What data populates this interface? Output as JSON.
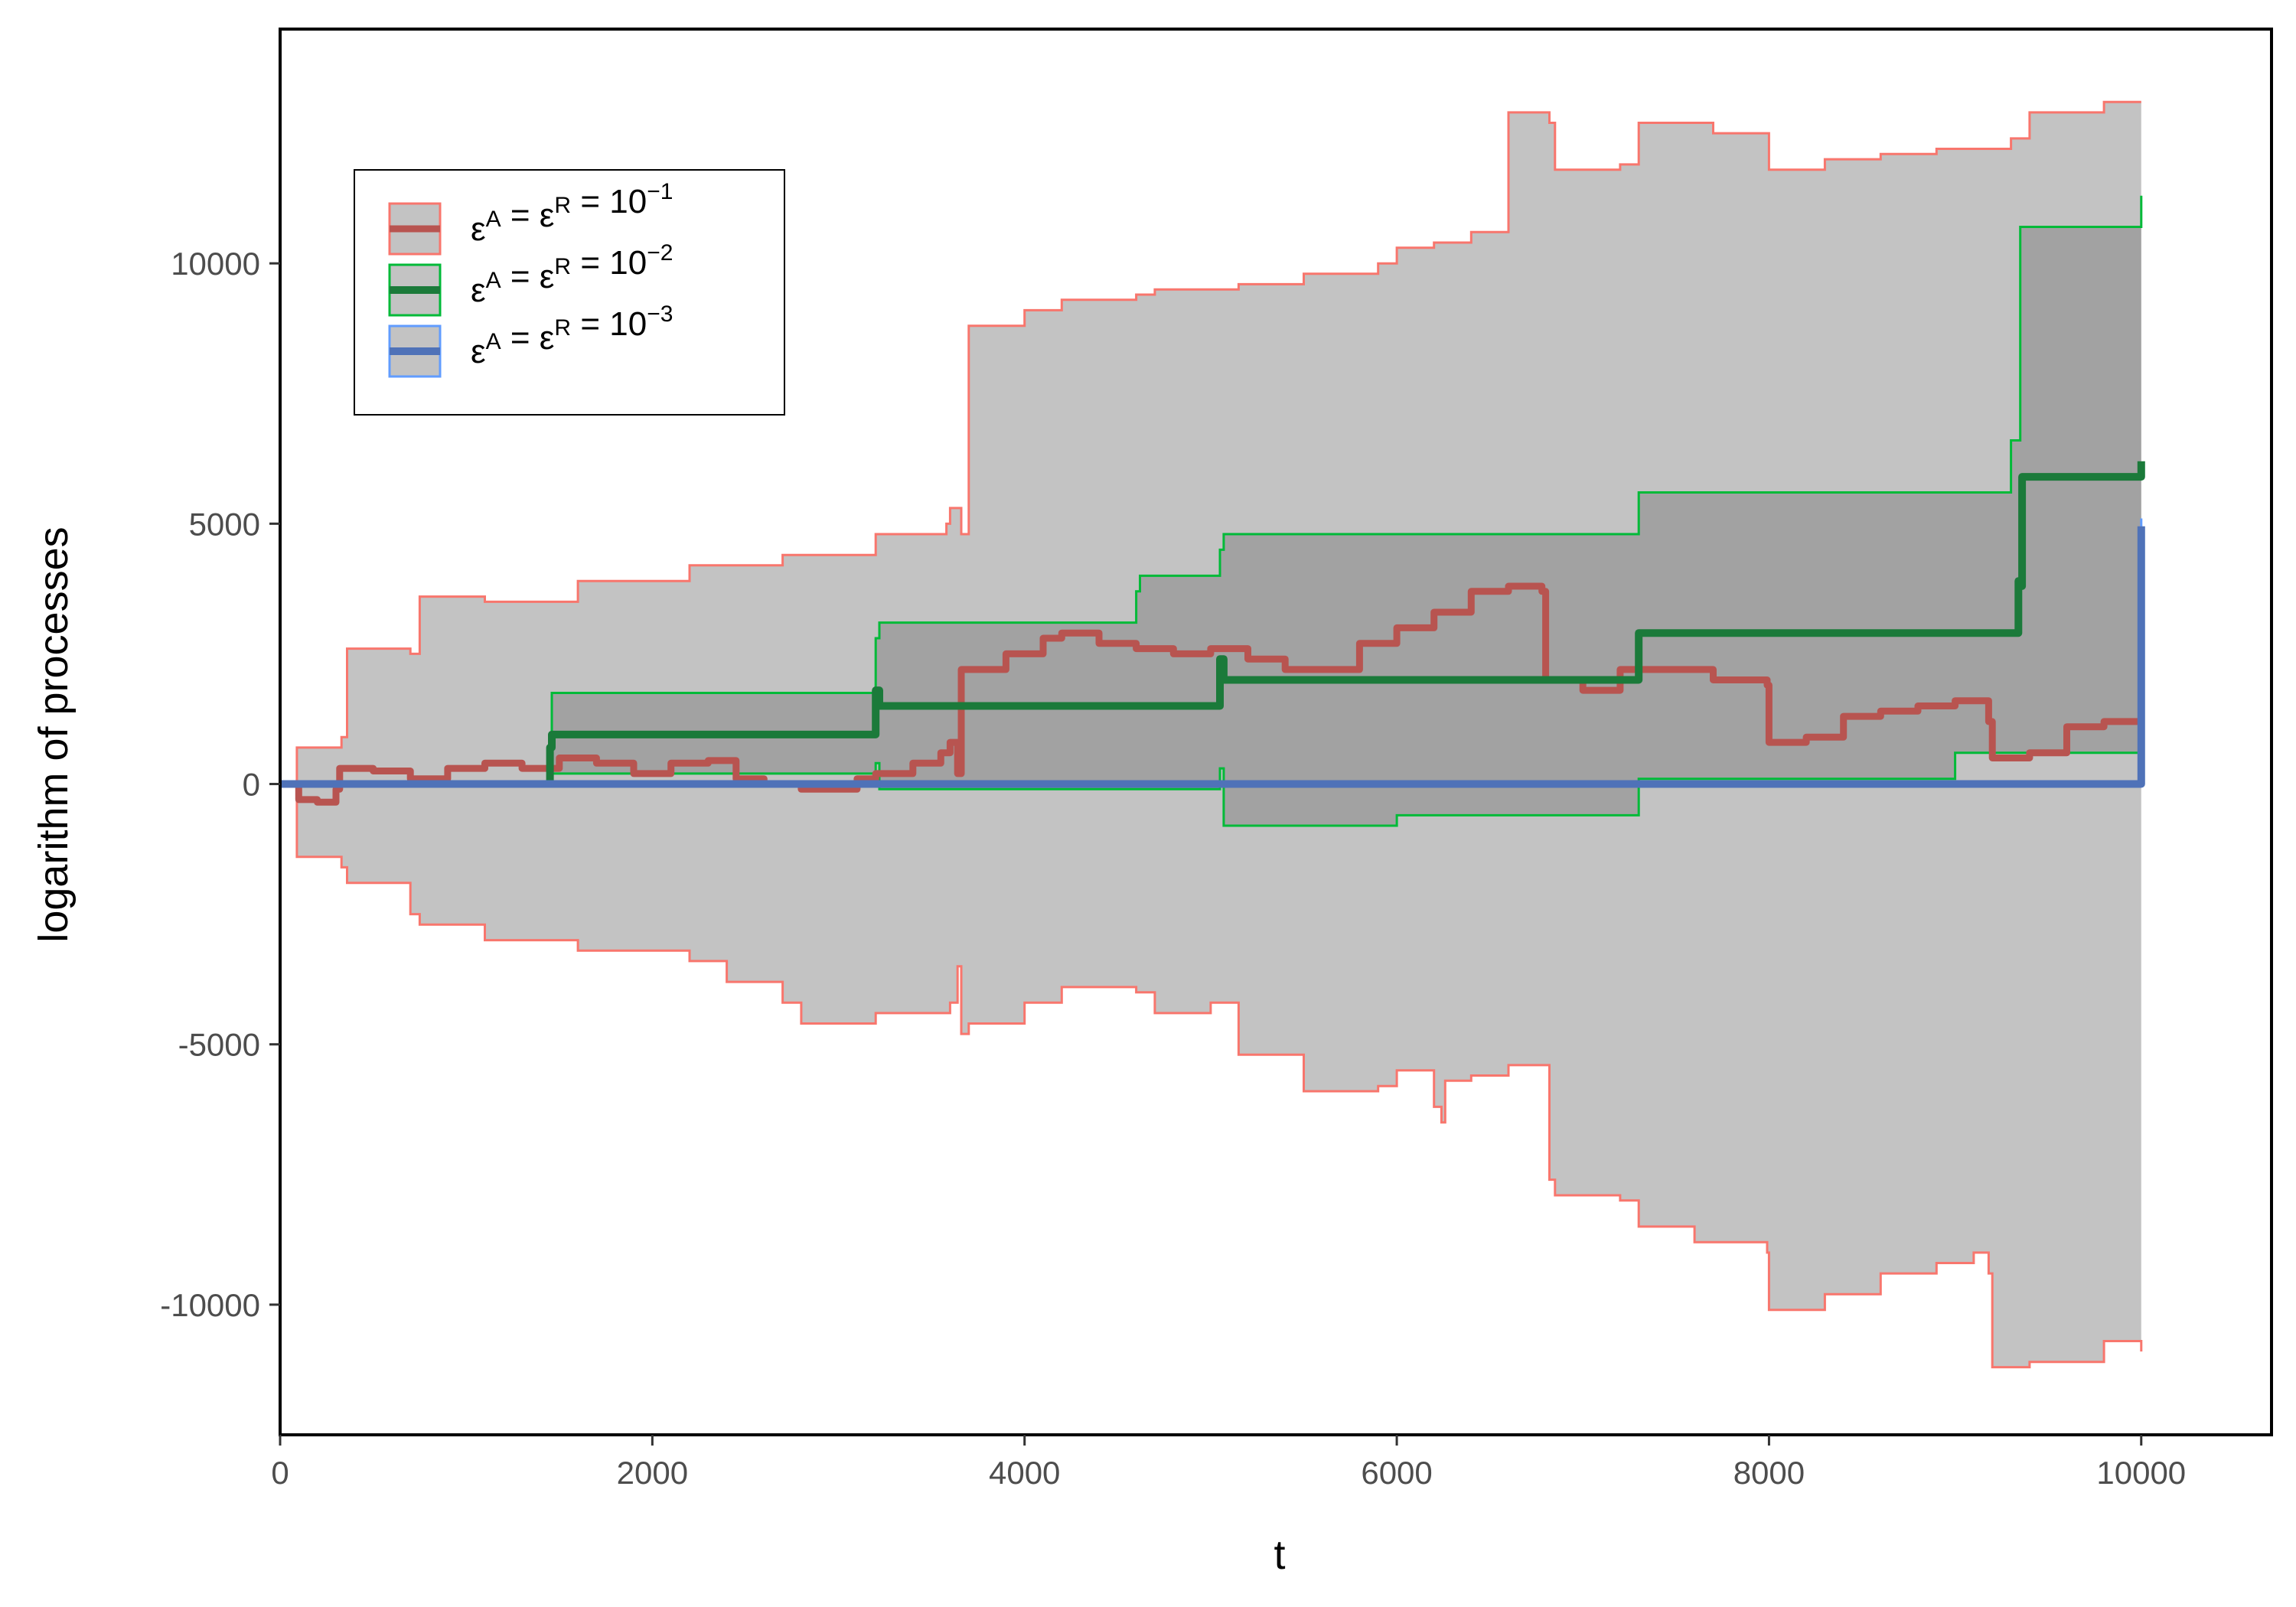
{
  "chart_data": {
    "type": "line",
    "xlabel": "t",
    "ylabel": "logarithm of processes",
    "xlim": [
      0,
      10700
    ],
    "ylim": [
      -12500,
      14500
    ],
    "x_ticks": [
      0,
      2000,
      4000,
      6000,
      8000,
      10000
    ],
    "y_ticks": [
      -10000,
      -5000,
      0,
      5000,
      10000
    ],
    "grid": false,
    "legend_position": "top-left",
    "legend": [
      {
        "eps": "ε",
        "a": "A",
        "eq1": " = ",
        "r": "R",
        "eq2": " = 10",
        "exp": "−1"
      },
      {
        "eps": "ε",
        "a": "A",
        "eq1": " = ",
        "r": "R",
        "eq2": " = 10",
        "exp": "−2"
      },
      {
        "eps": "ε",
        "a": "A",
        "eq1": " = ",
        "r": "R",
        "eq2": " = 10",
        "exp": "−3"
      }
    ],
    "series": [
      {
        "line_color": "#b85450",
        "band_stroke": "#f8766d",
        "band_fill": "#c3c3c3",
        "band_fill_opacity": 1,
        "line_width": 9,
        "band_upper": [
          [
            0,
            0
          ],
          [
            90,
            700
          ],
          [
            330,
            900
          ],
          [
            360,
            2600
          ],
          [
            700,
            2500
          ],
          [
            750,
            3600
          ],
          [
            1100,
            3500
          ],
          [
            1600,
            3900
          ],
          [
            2200,
            4200
          ],
          [
            2700,
            4400
          ],
          [
            3200,
            4800
          ],
          [
            3580,
            5000
          ],
          [
            3600,
            5300
          ],
          [
            3640,
            5300
          ],
          [
            3660,
            4800
          ],
          [
            3690,
            4800
          ],
          [
            3700,
            8800
          ],
          [
            4000,
            9100
          ],
          [
            4200,
            9300
          ],
          [
            4600,
            9400
          ],
          [
            4700,
            9500
          ],
          [
            5000,
            9500
          ],
          [
            5150,
            9600
          ],
          [
            5500,
            9800
          ],
          [
            5900,
            10000
          ],
          [
            6000,
            10300
          ],
          [
            6200,
            10400
          ],
          [
            6400,
            10600
          ],
          [
            6600,
            12900
          ],
          [
            6800,
            12900
          ],
          [
            6820,
            12700
          ],
          [
            6840,
            12700
          ],
          [
            6850,
            11800
          ],
          [
            7200,
            11900
          ],
          [
            7300,
            12700
          ],
          [
            7600,
            12700
          ],
          [
            7700,
            12500
          ],
          [
            7990,
            12500
          ],
          [
            8000,
            11800
          ],
          [
            8300,
            12000
          ],
          [
            8600,
            12100
          ],
          [
            8900,
            12200
          ],
          [
            9300,
            12400
          ],
          [
            9400,
            12900
          ],
          [
            9800,
            13100
          ],
          [
            10000,
            13100
          ]
        ],
        "band_lower": [
          [
            0,
            0
          ],
          [
            90,
            -1400
          ],
          [
            330,
            -1600
          ],
          [
            360,
            -1900
          ],
          [
            700,
            -2500
          ],
          [
            750,
            -2700
          ],
          [
            1100,
            -3000
          ],
          [
            1600,
            -3200
          ],
          [
            2200,
            -3400
          ],
          [
            2400,
            -3800
          ],
          [
            2700,
            -4200
          ],
          [
            2800,
            -4600
          ],
          [
            3200,
            -4400
          ],
          [
            3600,
            -4200
          ],
          [
            3640,
            -3500
          ],
          [
            3660,
            -4800
          ],
          [
            3700,
            -4600
          ],
          [
            4000,
            -4200
          ],
          [
            4200,
            -3900
          ],
          [
            4600,
            -4000
          ],
          [
            4700,
            -4400
          ],
          [
            5000,
            -4200
          ],
          [
            5150,
            -5200
          ],
          [
            5500,
            -5900
          ],
          [
            5900,
            -5800
          ],
          [
            6000,
            -5500
          ],
          [
            6200,
            -6200
          ],
          [
            6240,
            -6500
          ],
          [
            6260,
            -5700
          ],
          [
            6400,
            -5600
          ],
          [
            6600,
            -5400
          ],
          [
            6800,
            -5400
          ],
          [
            6820,
            -7600
          ],
          [
            6850,
            -7900
          ],
          [
            7200,
            -8000
          ],
          [
            7300,
            -8500
          ],
          [
            7600,
            -8800
          ],
          [
            7990,
            -9000
          ],
          [
            8000,
            -10100
          ],
          [
            8300,
            -9800
          ],
          [
            8600,
            -9400
          ],
          [
            8900,
            -9200
          ],
          [
            9100,
            -9000
          ],
          [
            9180,
            -9400
          ],
          [
            9200,
            -11200
          ],
          [
            9400,
            -11100
          ],
          [
            9800,
            -10700
          ],
          [
            10000,
            -10900
          ]
        ],
        "line": [
          [
            0,
            0
          ],
          [
            100,
            -300
          ],
          [
            200,
            -350
          ],
          [
            300,
            -100
          ],
          [
            320,
            300
          ],
          [
            500,
            250
          ],
          [
            700,
            100
          ],
          [
            900,
            300
          ],
          [
            1100,
            400
          ],
          [
            1300,
            300
          ],
          [
            1500,
            500
          ],
          [
            1700,
            400
          ],
          [
            1900,
            200
          ],
          [
            2100,
            400
          ],
          [
            2300,
            450
          ],
          [
            2450,
            100
          ],
          [
            2600,
            0
          ],
          [
            2800,
            -100
          ],
          [
            3100,
            100
          ],
          [
            3200,
            200
          ],
          [
            3400,
            400
          ],
          [
            3550,
            600
          ],
          [
            3600,
            800
          ],
          [
            3640,
            200
          ],
          [
            3660,
            2200
          ],
          [
            3900,
            2500
          ],
          [
            4100,
            2800
          ],
          [
            4200,
            2900
          ],
          [
            4400,
            2700
          ],
          [
            4600,
            2600
          ],
          [
            4800,
            2500
          ],
          [
            5000,
            2600
          ],
          [
            5200,
            2400
          ],
          [
            5400,
            2200
          ],
          [
            5600,
            2200
          ],
          [
            5800,
            2700
          ],
          [
            6000,
            3000
          ],
          [
            6200,
            3300
          ],
          [
            6400,
            3700
          ],
          [
            6600,
            3800
          ],
          [
            6780,
            3700
          ],
          [
            6800,
            2000
          ],
          [
            7000,
            1800
          ],
          [
            7200,
            2200
          ],
          [
            7500,
            2200
          ],
          [
            7700,
            2000
          ],
          [
            7990,
            1900
          ],
          [
            8000,
            800
          ],
          [
            8200,
            900
          ],
          [
            8400,
            1300
          ],
          [
            8600,
            1400
          ],
          [
            8800,
            1500
          ],
          [
            9000,
            1600
          ],
          [
            9100,
            1600
          ],
          [
            9180,
            1200
          ],
          [
            9200,
            500
          ],
          [
            9400,
            600
          ],
          [
            9600,
            1100
          ],
          [
            9800,
            1200
          ],
          [
            10000,
            1100
          ]
        ]
      },
      {
        "line_color": "#1b7a3a",
        "band_stroke": "#00ba38",
        "band_fill": "#7a7a7a",
        "band_fill_opacity": 0.45,
        "line_width": 10,
        "band_upper": [
          [
            0,
            0
          ],
          [
            1450,
            900
          ],
          [
            1460,
            1750
          ],
          [
            3200,
            2800
          ],
          [
            3220,
            3100
          ],
          [
            4600,
            3700
          ],
          [
            4620,
            4000
          ],
          [
            5050,
            4500
          ],
          [
            5070,
            4800
          ],
          [
            7300,
            5600
          ],
          [
            9300,
            6600
          ],
          [
            9340,
            6600
          ],
          [
            9350,
            10700
          ],
          [
            10000,
            11300
          ]
        ],
        "band_lower": [
          [
            0,
            0
          ],
          [
            1450,
            100
          ],
          [
            1460,
            200
          ],
          [
            3200,
            400
          ],
          [
            3220,
            -100
          ],
          [
            5050,
            300
          ],
          [
            5070,
            -800
          ],
          [
            6000,
            -600
          ],
          [
            7300,
            100
          ],
          [
            9000,
            600
          ],
          [
            10000,
            1000
          ]
        ],
        "line": [
          [
            0,
            0
          ],
          [
            1450,
            700
          ],
          [
            1460,
            950
          ],
          [
            3200,
            1800
          ],
          [
            3220,
            1500
          ],
          [
            5050,
            2400
          ],
          [
            5070,
            2000
          ],
          [
            7300,
            2900
          ],
          [
            9340,
            3900
          ],
          [
            9350,
            3800
          ],
          [
            9360,
            5900
          ],
          [
            10000,
            6200
          ]
        ]
      },
      {
        "line_color": "#4f72b8",
        "band_stroke": "#619cff",
        "band_fill": "#7a7a7a",
        "band_fill_opacity": 0.45,
        "line_width": 10,
        "band_upper": [
          [
            0,
            0
          ],
          [
            10000,
            5100
          ]
        ],
        "band_lower": [
          [
            0,
            0
          ],
          [
            10000,
            4850
          ]
        ],
        "line": [
          [
            0,
            0
          ],
          [
            10000,
            4950
          ]
        ]
      }
    ]
  }
}
